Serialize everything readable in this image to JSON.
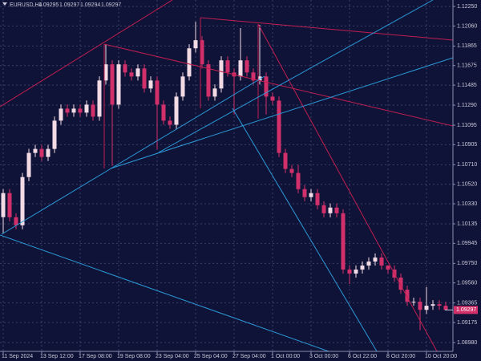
{
  "chart_data": {
    "type": "candlestick",
    "title": "EURUSD,H4",
    "header_values": [
      1.09295,
      1.09297,
      1.09294,
      1.09297
    ],
    "current_price": {
      "value": 1.09297,
      "label": "1.09297"
    },
    "up_color": "#f2dbe4",
    "down_color": "#d2306a",
    "grid": true,
    "categories": [
      "11 Sep 2024",
      null,
      null,
      null,
      null,
      null,
      "13 Sep 12:00",
      null,
      null,
      null,
      null,
      null,
      "17 Sep 08:00",
      null,
      null,
      null,
      null,
      null,
      "19 Sep 08:00",
      null,
      null,
      null,
      null,
      null,
      "23 Sep 04:00",
      null,
      null,
      null,
      null,
      null,
      "25 Sep 04:00",
      null,
      null,
      null,
      null,
      null,
      "27 Sep 04:00",
      null,
      null,
      null,
      null,
      null,
      "1 Oct 00:00",
      null,
      null,
      null,
      null,
      null,
      "3 Oct 00:00",
      null,
      null,
      null,
      null,
      null,
      "6 Oct 22:00",
      null,
      null,
      null,
      null,
      null,
      "8 Oct 20:00",
      null,
      null,
      null,
      null,
      null,
      "10 Oct 20:00",
      null,
      null,
      null
    ],
    "open": [
      1.102,
      1.10434,
      1.10199,
      1.10121,
      1.1059,
      1.10825,
      1.10864,
      1.10786,
      1.10864,
      1.11139,
      1.11256,
      1.11217,
      1.11256,
      1.11217,
      1.11295,
      1.11178,
      1.1153,
      1.11687,
      1.11295,
      1.11687,
      1.11608,
      1.11569,
      1.11647,
      1.11452,
      1.1153,
      1.11295,
      1.11139,
      1.11099,
      1.11373,
      1.11569,
      1.11843,
      1.11922,
      1.11687,
      1.11373,
      1.11452,
      1.11726,
      1.11608,
      1.11569,
      1.11726,
      1.11608,
      1.1153,
      1.11569,
      1.11373,
      1.11334,
      1.10825,
      1.10669,
      1.1063,
      1.10473,
      1.10395,
      1.10434,
      1.10316,
      1.10238,
      1.10293,
      1.10238,
      1.0969,
      1.09651,
      1.0969,
      1.09729,
      1.09768,
      1.09807,
      1.09729,
      1.0969,
      1.09612,
      1.09494,
      1.09377,
      1.09377,
      1.09298,
      1.09338,
      1.09353,
      1.09338
    ],
    "high": [
      1.10474,
      1.10474,
      1.10239,
      1.1063,
      1.10865,
      1.10904,
      1.10904,
      1.10904,
      1.11179,
      1.11296,
      1.11296,
      1.11296,
      1.11296,
      1.11335,
      1.11335,
      1.1157,
      1.11883,
      1.11727,
      1.11727,
      1.11727,
      1.11648,
      1.11687,
      1.11687,
      1.1157,
      1.1157,
      1.11335,
      1.11179,
      1.11413,
      1.11609,
      1.11883,
      1.121,
      1.11962,
      1.11727,
      1.11492,
      1.11766,
      1.11766,
      1.11648,
      1.1204,
      1.11766,
      1.11648,
      1.1207,
      1.11609,
      1.11413,
      1.11374,
      1.10865,
      1.10709,
      1.1071,
      1.10513,
      1.10474,
      1.10474,
      1.10356,
      1.10333,
      1.10333,
      1.10278,
      1.0973,
      1.0973,
      1.09769,
      1.09808,
      1.09847,
      1.09847,
      1.0973,
      1.0973,
      1.09652,
      1.09534,
      1.09417,
      1.09417,
      1.0952,
      1.09393,
      1.09393,
      1.09378
    ],
    "low": [
      1.10043,
      1.10159,
      1.10081,
      1.10081,
      1.1055,
      1.10785,
      1.10746,
      1.10746,
      1.10824,
      1.11099,
      1.11177,
      1.11177,
      1.11177,
      1.11177,
      1.11138,
      1.11138,
      1.1149,
      1.107,
      1.11255,
      1.11568,
      1.11529,
      1.11529,
      1.11412,
      1.11412,
      1.1086,
      1.11099,
      1.11059,
      1.11059,
      1.11333,
      1.11529,
      1.11803,
      1.11647,
      1.11333,
      1.11333,
      1.11412,
      1.11568,
      1.112,
      1.11529,
      1.11568,
      1.1149,
      1.1149,
      1.112,
      1.11294,
      1.10785,
      1.10629,
      1.1059,
      1.10433,
      1.10355,
      1.10355,
      1.10276,
      1.10198,
      1.10198,
      1.10198,
      1.0965,
      1.0955,
      1.09611,
      1.0965,
      1.09689,
      1.09728,
      1.09689,
      1.0965,
      1.09572,
      1.09454,
      1.09337,
      1.09337,
      1.091,
      1.09258,
      1.09298,
      1.09298,
      1.09294
    ],
    "close": [
      1.10434,
      1.10199,
      1.10121,
      1.1059,
      1.10825,
      1.10864,
      1.10786,
      1.10864,
      1.11139,
      1.11256,
      1.11217,
      1.11256,
      1.11217,
      1.11295,
      1.11178,
      1.1153,
      1.11687,
      1.11295,
      1.11687,
      1.11608,
      1.11569,
      1.11647,
      1.11452,
      1.1153,
      1.11295,
      1.11139,
      1.11099,
      1.11373,
      1.11569,
      1.11843,
      1.11922,
      1.11687,
      1.11373,
      1.11452,
      1.11726,
      1.11608,
      1.11569,
      1.11726,
      1.11608,
      1.1153,
      1.11569,
      1.11373,
      1.11334,
      1.10825,
      1.10669,
      1.1063,
      1.10473,
      1.10395,
      1.10434,
      1.10316,
      1.10238,
      1.10293,
      1.10238,
      1.0969,
      1.09651,
      1.0969,
      1.09729,
      1.09768,
      1.09807,
      1.09729,
      1.0969,
      1.09612,
      1.09494,
      1.09377,
      1.09377,
      1.09298,
      1.09338,
      1.09353,
      1.09338,
      1.09297
    ],
    "ylim": [
      1.08894,
      1.12313
    ],
    "yticks": [
      {
        "value": 1.1225,
        "label": "1.12250"
      },
      {
        "value": 1.1206,
        "label": "1.12060"
      },
      {
        "value": 1.11865,
        "label": "1.11865"
      },
      {
        "value": 1.11675,
        "label": "1.11675"
      },
      {
        "value": 1.11485,
        "label": "1.11485"
      },
      {
        "value": 1.1129,
        "label": "1.11290"
      },
      {
        "value": 1.11095,
        "label": "1.11095"
      },
      {
        "value": 1.10905,
        "label": "1.10905"
      },
      {
        "value": 1.1071,
        "label": "1.10710"
      },
      {
        "value": 1.1052,
        "label": "1.10520"
      },
      {
        "value": 1.1033,
        "label": "1.10330"
      },
      {
        "value": 1.10135,
        "label": "1.10135"
      },
      {
        "value": 1.09945,
        "label": "1.09945"
      },
      {
        "value": 1.0975,
        "label": "1.09750"
      },
      {
        "value": 1.0956,
        "label": "1.09560"
      },
      {
        "value": 1.09365,
        "label": "1.09365"
      },
      {
        "value": 1.09175,
        "label": "1.09175"
      },
      {
        "value": 1.0898,
        "label": "1.08980"
      }
    ]
  }
}
